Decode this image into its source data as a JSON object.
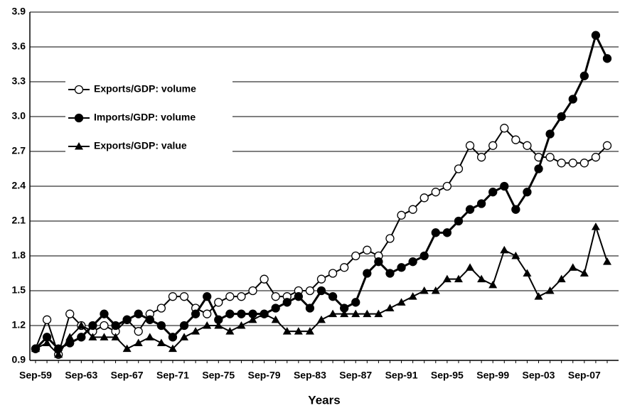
{
  "chart_data": {
    "type": "line",
    "x_label": "Years",
    "categories": [
      "Sep-59",
      null,
      null,
      null,
      "Sep-63",
      null,
      null,
      null,
      "Sep-67",
      null,
      null,
      null,
      "Sep-71",
      null,
      null,
      null,
      "Sep-75",
      null,
      null,
      null,
      "Sep-79",
      null,
      null,
      null,
      "Sep-83",
      null,
      null,
      null,
      "Sep-87",
      null,
      null,
      null,
      "Sep-91",
      null,
      null,
      null,
      "Sep-95",
      null,
      null,
      null,
      "Sep-99",
      null,
      null,
      null,
      "Sep-03",
      null,
      null,
      null,
      "Sep-07",
      null,
      null
    ],
    "series": [
      {
        "name": "Exports/GDP: volume",
        "color": "#000000",
        "marker": "circle-open",
        "values": [
          1.0,
          1.25,
          0.95,
          1.3,
          1.2,
          1.15,
          1.2,
          1.15,
          1.25,
          1.15,
          1.3,
          1.35,
          1.45,
          1.45,
          1.35,
          1.3,
          1.4,
          1.45,
          1.45,
          1.5,
          1.6,
          1.45,
          1.45,
          1.5,
          1.5,
          1.6,
          1.65,
          1.7,
          1.8,
          1.85,
          1.8,
          1.95,
          2.15,
          2.2,
          2.3,
          2.35,
          2.4,
          2.55,
          2.75,
          2.65,
          2.75,
          2.9,
          2.8,
          2.75,
          2.65,
          2.65,
          2.6,
          2.6,
          2.6,
          2.65,
          2.75
        ]
      },
      {
        "name": "Imports/GDP: volume",
        "color": "#000000",
        "marker": "circle-filled",
        "values": [
          1.0,
          1.1,
          1.0,
          1.05,
          1.1,
          1.2,
          1.3,
          1.2,
          1.25,
          1.3,
          1.25,
          1.2,
          1.1,
          1.2,
          1.3,
          1.45,
          1.25,
          1.3,
          1.3,
          1.3,
          1.3,
          1.35,
          1.4,
          1.45,
          1.35,
          1.5,
          1.45,
          1.35,
          1.4,
          1.65,
          1.75,
          1.65,
          1.7,
          1.75,
          1.8,
          2.0,
          2.0,
          2.1,
          2.2,
          2.25,
          2.35,
          2.4,
          2.2,
          2.35,
          2.55,
          2.85,
          3.0,
          3.15,
          3.35,
          3.7,
          3.5
        ]
      },
      {
        "name": "Exports/GDP: value",
        "color": "#000000",
        "marker": "triangle",
        "values": [
          1.0,
          1.05,
          0.95,
          1.1,
          1.2,
          1.1,
          1.1,
          1.1,
          1.0,
          1.05,
          1.1,
          1.05,
          1.0,
          1.1,
          1.15,
          1.2,
          1.2,
          1.15,
          1.2,
          1.25,
          1.3,
          1.25,
          1.15,
          1.15,
          1.15,
          1.25,
          1.3,
          1.3,
          1.3,
          1.3,
          1.3,
          1.35,
          1.4,
          1.45,
          1.5,
          1.5,
          1.6,
          1.6,
          1.7,
          1.6,
          1.55,
          1.85,
          1.8,
          1.65,
          1.45,
          1.5,
          1.6,
          1.7,
          1.65,
          2.05,
          1.75
        ]
      }
    ],
    "ylim": [
      0.9,
      3.9
    ],
    "yticks": [
      0.9,
      1.2,
      1.5,
      1.8,
      2.1,
      2.4,
      2.7,
      {
        "value": 3,
        "label": "3.0"
      },
      3.3,
      3.6,
      3.9
    ],
    "grid": true,
    "legend": "upper left"
  }
}
